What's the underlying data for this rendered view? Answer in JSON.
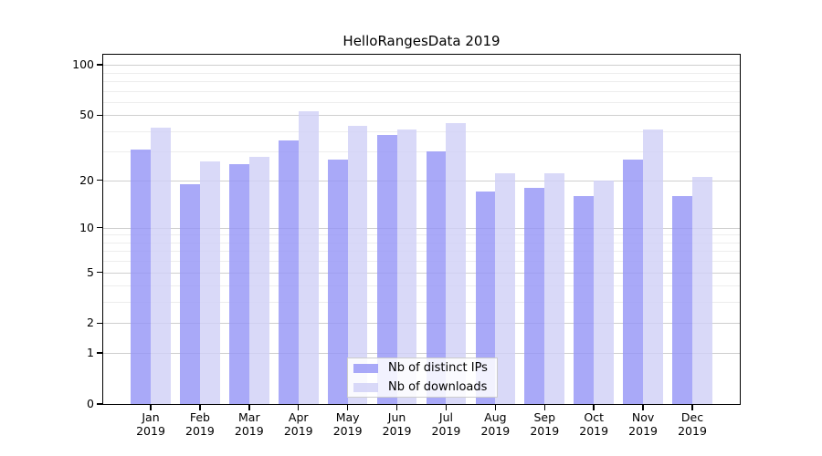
{
  "title": "HelloRangesData 2019",
  "chart_data": {
    "type": "bar",
    "title": "HelloRangesData 2019",
    "categories": [
      "Jan",
      "Feb",
      "Mar",
      "Apr",
      "May",
      "Jun",
      "Jul",
      "Aug",
      "Sep",
      "Oct",
      "Nov",
      "Dec"
    ],
    "year_label": "2019",
    "series": [
      {
        "name": "Nb of distinct IPs",
        "color": "#9494F6CC",
        "values": [
          31,
          19,
          25,
          35,
          27,
          38,
          30,
          17,
          18,
          16,
          27,
          16
        ]
      },
      {
        "name": "Nb of downloads",
        "color": "#D0D0F6CC",
        "values": [
          42,
          26,
          28,
          53,
          43,
          41,
          45,
          22,
          22,
          20,
          41,
          21
        ]
      }
    ],
    "yscale": "log1p",
    "ylim": [
      0,
      115
    ],
    "yticks": [
      0,
      1,
      2,
      5,
      10,
      20,
      50,
      100
    ],
    "yticks_minor": [
      3,
      4,
      6,
      7,
      8,
      9,
      30,
      40,
      60,
      70,
      80,
      90
    ],
    "xlabel": "",
    "ylabel": "",
    "grid": "horizontal",
    "legend_position": "inside-bottom-center",
    "colors": {
      "grid_major": "#cfcfcf",
      "grid_minor": "#ededed",
      "axis": "#000000",
      "legend_border": "#cccccc",
      "text": "#000000"
    }
  }
}
